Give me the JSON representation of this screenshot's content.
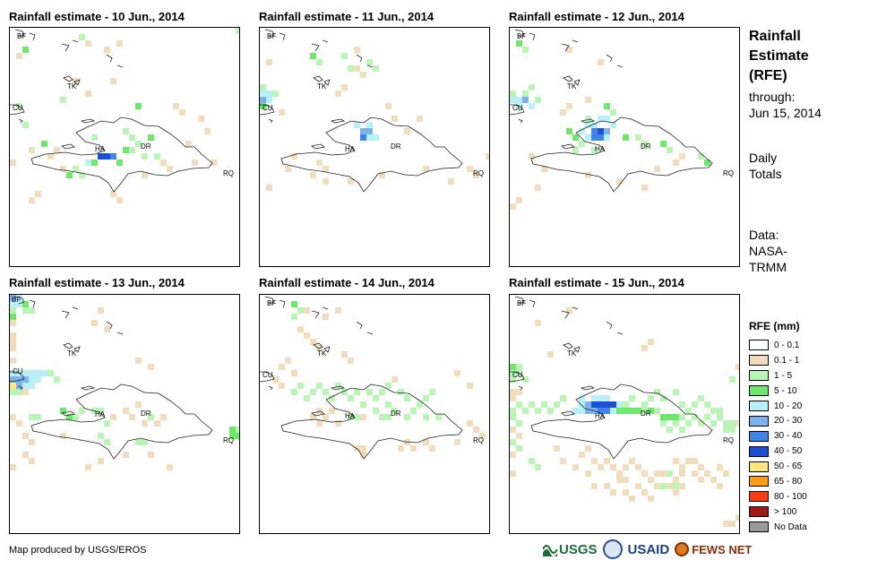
{
  "panels": [
    {
      "title": "Rainfall estimate - 10 Jun., 2014"
    },
    {
      "title": "Rainfall estimate - 11 Jun., 2014"
    },
    {
      "title": "Rainfall estimate - 12 Jun., 2014"
    },
    {
      "title": "Rainfall estimate - 13 Jun., 2014"
    },
    {
      "title": "Rainfall estimate - 14 Jun., 2014"
    },
    {
      "title": "Rainfall estimate - 15 Jun., 2014"
    }
  ],
  "map_labels": {
    "bf": "BF",
    "tk": "TK",
    "cu": "CU",
    "ha": "HA",
    "dr": "DR",
    "rq": "RQ"
  },
  "side": {
    "title_1": "Rainfall",
    "title_2": "Estimate",
    "title_3": "(RFE)",
    "through_label": "through:",
    "through_date": "Jun 15, 2014",
    "totals_1": "Daily",
    "totals_2": "Totals",
    "data_1": "Data:",
    "data_2": "NASA-",
    "data_3": "TRMM"
  },
  "legend": {
    "title": "RFE (mm)",
    "items": [
      {
        "label": "0 - 0.1",
        "color": "#ffffff"
      },
      {
        "label": "0.1 - 1",
        "color": "#f1dcbb"
      },
      {
        "label": "1 - 5",
        "color": "#b9f5b4"
      },
      {
        "label": "5 - 10",
        "color": "#6ee86a"
      },
      {
        "label": "10 - 20",
        "color": "#b8f0f8"
      },
      {
        "label": "20 - 30",
        "color": "#79b2ee"
      },
      {
        "label": "30 - 40",
        "color": "#3f84e6"
      },
      {
        "label": "40 - 50",
        "color": "#1a4fd6"
      },
      {
        "label": "50 - 65",
        "color": "#ffe680"
      },
      {
        "label": "65 - 80",
        "color": "#ff9d1a"
      },
      {
        "label": "80 - 100",
        "color": "#ff3a12"
      },
      {
        "label": "> 100",
        "color": "#a01818"
      },
      {
        "label": "No Data",
        "color": "#9a9a9a"
      }
    ]
  },
  "credit": "Map produced by USGS/EROS",
  "logos": {
    "usgs": "USGS",
    "usaid": "USAID",
    "fews": "FEWS NET"
  }
}
